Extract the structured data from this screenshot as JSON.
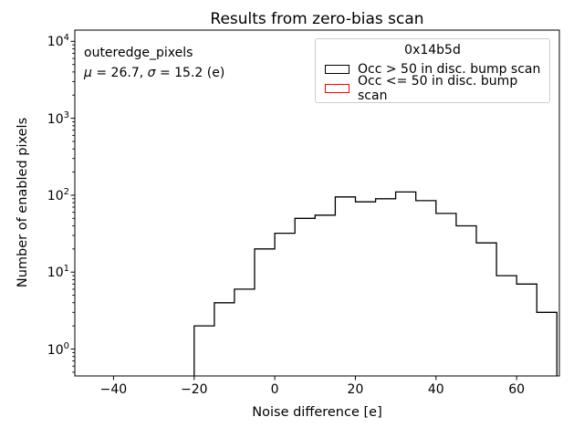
{
  "chart_data": {
    "type": "bar",
    "subtype": "step-histogram",
    "title": "Results from zero-bias scan",
    "xlabel": "Noise difference [e]",
    "ylabel": "Number of enabled pixels",
    "yscale": "log",
    "xlim": [
      -49.6,
      70.6
    ],
    "ylim": [
      0.447,
      14000
    ],
    "grid": false,
    "bin_edges": [
      -20,
      -15,
      -10,
      -5,
      0,
      5,
      10,
      15,
      20,
      25,
      30,
      35,
      40,
      45,
      50,
      55,
      60,
      65,
      70
    ],
    "series": [
      {
        "name": "Occ > 50 in disc. bump scan",
        "color": "#000000",
        "counts": [
          2,
          4,
          6,
          20,
          32,
          50,
          55,
          95,
          82,
          90,
          110,
          85,
          58,
          40,
          24,
          9,
          7,
          3
        ]
      },
      {
        "name": "Occ <= 50 in disc. bump scan",
        "color": "#ff0000",
        "counts": []
      }
    ],
    "x_ticks": [
      {
        "value": -40,
        "label": "−40"
      },
      {
        "value": -20,
        "label": "−20"
      },
      {
        "value": 0,
        "label": "0"
      },
      {
        "value": 20,
        "label": "20"
      },
      {
        "value": 40,
        "label": "40"
      },
      {
        "value": 60,
        "label": "60"
      }
    ],
    "y_ticks": [
      {
        "value": 1,
        "base": "10",
        "exp": "0"
      },
      {
        "value": 10,
        "base": "10",
        "exp": "1"
      },
      {
        "value": 100,
        "base": "10",
        "exp": "2"
      },
      {
        "value": 1000,
        "base": "10",
        "exp": "3"
      },
      {
        "value": 10000,
        "base": "10",
        "exp": "4"
      }
    ],
    "legend": {
      "title": "0x14b5d",
      "position": "upper right"
    },
    "annotation": {
      "line1": "outeredge_pixels",
      "mu_symbol": "μ",
      "mu_value": " = 26.7, ",
      "sigma_symbol": "σ",
      "sigma_value": " = 15.2 (e)"
    }
  }
}
